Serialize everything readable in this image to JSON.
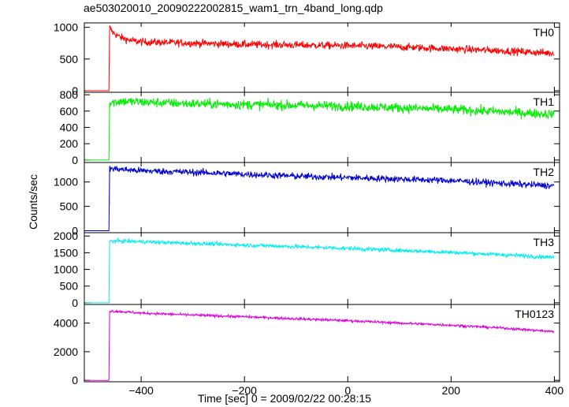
{
  "title": "ae503020010_20090222002815_wam1_trn_4band_long.qdp",
  "xlabel": "Time [sec] 0 = 2009/02/22 00:28:15",
  "ylabel": "Counts/sec",
  "chart_data": {
    "type": "line",
    "title": "ae503020010_20090222002815_wam1_trn_4band_long.qdp",
    "xlabel": "Time [sec] 0 = 2009/02/22 00:28:15",
    "ylabel": "Counts/sec",
    "xlim": [
      -510,
      410
    ],
    "x_ticks": [
      -400,
      -200,
      0,
      200,
      400
    ],
    "shared_x": true,
    "series": [
      {
        "name": "TH0",
        "color": "#ff0000",
        "ylim": [
          -25,
          1070
        ],
        "yticks": [
          0,
          500,
          1000
        ],
        "points": [
          [
            -508,
            0
          ],
          [
            -462,
            0
          ],
          [
            -461,
            1000
          ],
          [
            -455,
            920
          ],
          [
            -440,
            840
          ],
          [
            -420,
            790
          ],
          [
            -400,
            770
          ],
          [
            -300,
            750
          ],
          [
            -200,
            730
          ],
          [
            -100,
            720
          ],
          [
            0,
            710
          ],
          [
            100,
            690
          ],
          [
            200,
            660
          ],
          [
            300,
            630
          ],
          [
            400,
            590
          ]
        ],
        "noise": 30
      },
      {
        "name": "TH1",
        "color": "#00ee00",
        "ylim": [
          -30,
          830
        ],
        "yticks": [
          0,
          200,
          400,
          600,
          800
        ],
        "points": [
          [
            -508,
            0
          ],
          [
            -462,
            0
          ],
          [
            -461,
            700
          ],
          [
            -440,
            720
          ],
          [
            -400,
            710
          ],
          [
            -300,
            690
          ],
          [
            -200,
            680
          ],
          [
            -100,
            670
          ],
          [
            0,
            660
          ],
          [
            100,
            640
          ],
          [
            200,
            620
          ],
          [
            300,
            590
          ],
          [
            400,
            560
          ]
        ],
        "noise": 30
      },
      {
        "name": "TH2",
        "color": "#0000cc",
        "ylim": [
          -40,
          1400
        ],
        "yticks": [
          0,
          500,
          1000
        ],
        "points": [
          [
            -508,
            0
          ],
          [
            -462,
            0
          ],
          [
            -461,
            1280
          ],
          [
            -440,
            1260
          ],
          [
            -400,
            1230
          ],
          [
            -300,
            1200
          ],
          [
            -200,
            1160
          ],
          [
            -100,
            1120
          ],
          [
            0,
            1090
          ],
          [
            100,
            1060
          ],
          [
            200,
            1030
          ],
          [
            300,
            970
          ],
          [
            400,
            920
          ]
        ],
        "noise": 35
      },
      {
        "name": "TH3",
        "color": "#00eeee",
        "ylim": [
          -50,
          2100
        ],
        "yticks": [
          0,
          500,
          1000,
          1500,
          2000
        ],
        "points": [
          [
            -508,
            0
          ],
          [
            -462,
            0
          ],
          [
            -461,
            1850
          ],
          [
            -440,
            1850
          ],
          [
            -400,
            1830
          ],
          [
            -300,
            1780
          ],
          [
            -200,
            1730
          ],
          [
            -100,
            1680
          ],
          [
            0,
            1630
          ],
          [
            100,
            1570
          ],
          [
            200,
            1510
          ],
          [
            300,
            1440
          ],
          [
            400,
            1360
          ]
        ],
        "noise": 30
      },
      {
        "name": "TH0123",
        "color": "#dd00dd",
        "ylim": [
          -100,
          5300
        ],
        "yticks": [
          0,
          2000,
          4000
        ],
        "points": [
          [
            -508,
            0
          ],
          [
            -462,
            0
          ],
          [
            -461,
            4850
          ],
          [
            -440,
            4800
          ],
          [
            -400,
            4700
          ],
          [
            -300,
            4560
          ],
          [
            -200,
            4440
          ],
          [
            -100,
            4300
          ],
          [
            0,
            4170
          ],
          [
            100,
            4000
          ],
          [
            200,
            3850
          ],
          [
            300,
            3650
          ],
          [
            400,
            3400
          ]
        ],
        "noise": 45
      }
    ]
  }
}
